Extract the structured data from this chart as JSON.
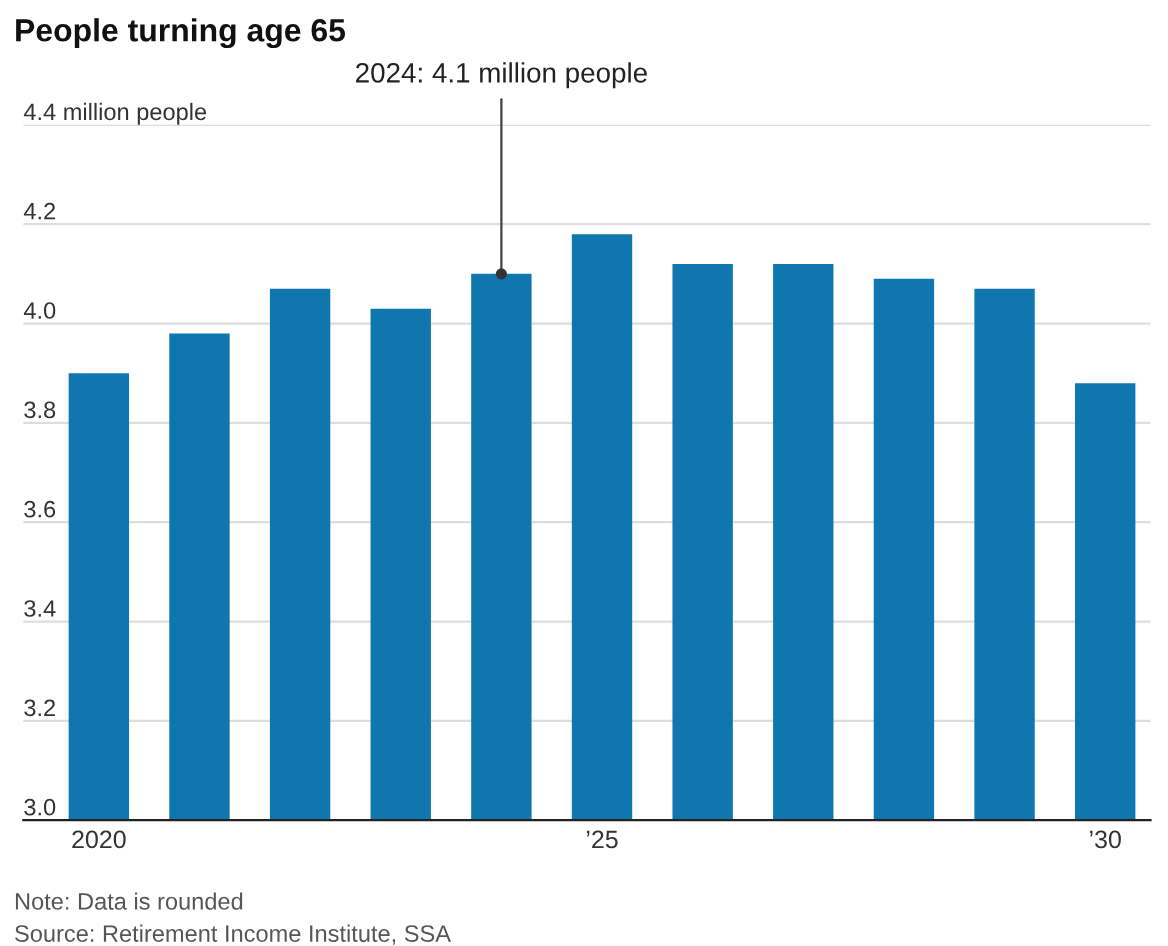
{
  "chart_data": {
    "type": "bar",
    "title": "People turning age 65",
    "categories": [
      "2020",
      null,
      null,
      null,
      null,
      "’25",
      null,
      null,
      null,
      null,
      "’30"
    ],
    "values": [
      3.9,
      3.98,
      4.07,
      4.03,
      4.1,
      4.18,
      4.12,
      4.12,
      4.09,
      4.07,
      3.88
    ],
    "color": "#0f77ae",
    "ylim": [
      3.0,
      4.4
    ],
    "yticks": [
      {
        "value": 3,
        "label": "3.0"
      },
      3.2,
      3.4,
      3.6,
      3.8,
      {
        "value": 4,
        "label": "4.0"
      },
      4.2,
      {
        "value": 4.4,
        "label": "4.4 million people"
      }
    ],
    "grid": "y",
    "annotations": [
      {
        "text": "2024: 4.1 million people",
        "y": 4.1
      },
      "Note: Data is rounded",
      "Source: Retirement Income Institute, SSA"
    ]
  }
}
